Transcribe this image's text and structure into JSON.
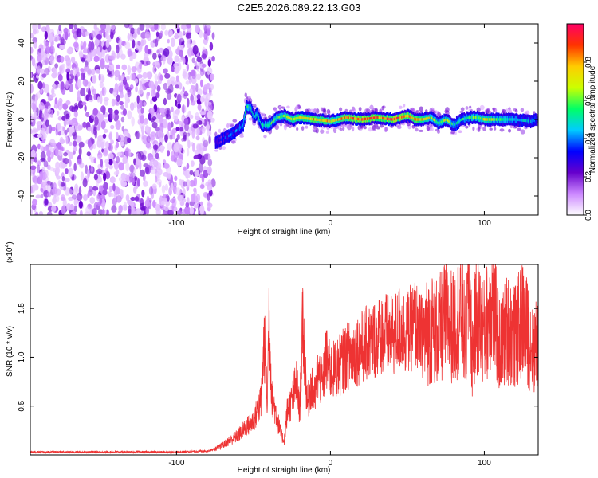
{
  "title": "C2E5.2026.089.22.13.G03",
  "chart_data": [
    {
      "type": "heatmap",
      "xlabel": "Height of straight line (km)",
      "ylabel": "Frequency (Hz)",
      "xlim": [
        -195,
        135
      ],
      "ylim": [
        -50,
        50
      ],
      "x_ticks": [
        -100,
        0,
        100
      ],
      "y_ticks": [
        -40,
        -20,
        0,
        20,
        40
      ],
      "colorbar": {
        "label": "Normalized spectral amplitude",
        "range": [
          0,
          1
        ],
        "ticks": [
          0.0,
          0.2,
          0.4,
          0.6,
          0.8
        ],
        "colors": [
          "#ffffff",
          "#cc88ff",
          "#6600cc",
          "#0000ff",
          "#00ccff",
          "#00ff66",
          "#ccff00",
          "#ffcc00",
          "#ff3300",
          "#ff0066"
        ]
      },
      "noise_region_x": [
        -195,
        -76
      ],
      "trace": {
        "x": [
          -75,
          -70,
          -65,
          -60,
          -57,
          -55,
          -52,
          -50,
          -48,
          -45,
          -40,
          -35,
          -30,
          -25,
          -20,
          -10,
          0,
          10,
          20,
          30,
          40,
          50,
          55,
          60,
          65,
          70,
          75,
          80,
          85,
          90,
          95,
          100,
          110,
          120,
          130,
          134
        ],
        "y": [
          -12,
          -10,
          -8,
          -5,
          -3,
          7,
          6,
          1,
          3,
          -3,
          -3,
          1,
          2,
          0,
          1,
          0,
          -1,
          1,
          0,
          1,
          0,
          2,
          0,
          0,
          1,
          -2,
          0,
          -3,
          0,
          1,
          1,
          0,
          0,
          0,
          -1,
          0
        ],
        "amplitude": [
          0.3,
          0.35,
          0.4,
          0.45,
          0.5,
          0.6,
          0.55,
          0.5,
          0.55,
          0.5,
          0.6,
          0.65,
          0.7,
          0.75,
          0.8,
          0.85,
          0.8,
          0.85,
          0.95,
          0.9,
          0.95,
          0.9,
          0.85,
          0.8,
          0.7,
          0.6,
          0.75,
          0.5,
          0.55,
          0.6,
          0.65,
          0.75,
          0.6,
          0.5,
          0.45,
          0.4
        ]
      }
    },
    {
      "type": "line",
      "xlabel": "Height of straight line (km)",
      "ylabel": "SNR (10 * v/v)",
      "y_multiplier": "(x10",
      "y_multiplier_exp": "4",
      "y_multiplier_close": ")",
      "xlim": [
        -195,
        135
      ],
      "ylim": [
        0,
        1.95
      ],
      "x_ticks": [
        -100,
        0,
        100
      ],
      "y_ticks": [
        0.5,
        1.0,
        1.5
      ],
      "series": [
        {
          "color": "#ee3333",
          "x": [
            -195,
            -150,
            -100,
            -80,
            -75,
            -70,
            -65,
            -60,
            -55,
            -50,
            -45,
            -43,
            -41,
            -40,
            -38,
            -35,
            -32,
            -30,
            -28,
            -25,
            -22,
            -20,
            -18,
            -15,
            -13,
            -10,
            -8,
            -5,
            -3,
            0,
            5,
            10,
            15,
            20,
            25,
            30,
            35,
            40,
            45,
            50,
            55,
            60,
            65,
            70,
            75,
            80,
            85,
            88,
            90,
            92,
            95,
            100,
            105,
            110,
            115,
            120,
            125,
            130,
            134
          ],
          "y": [
            0.03,
            0.03,
            0.03,
            0.04,
            0.06,
            0.1,
            0.15,
            0.2,
            0.28,
            0.35,
            0.55,
            1.2,
            0.5,
            1.45,
            0.6,
            0.4,
            0.2,
            0.15,
            0.45,
            0.55,
            0.75,
            0.45,
            1.35,
            0.5,
            0.7,
            0.6,
            0.85,
            0.7,
            1.0,
            0.85,
            0.9,
            1.0,
            1.05,
            1.1,
            1.15,
            1.2,
            1.25,
            1.2,
            1.3,
            1.25,
            1.35,
            1.2,
            1.3,
            1.25,
            1.4,
            1.3,
            1.5,
            1.1,
            1.9,
            1.0,
            1.45,
            1.25,
            1.6,
            1.1,
            1.3,
            1.2,
            1.4,
            1.15,
            1.1
          ]
        }
      ]
    }
  ]
}
